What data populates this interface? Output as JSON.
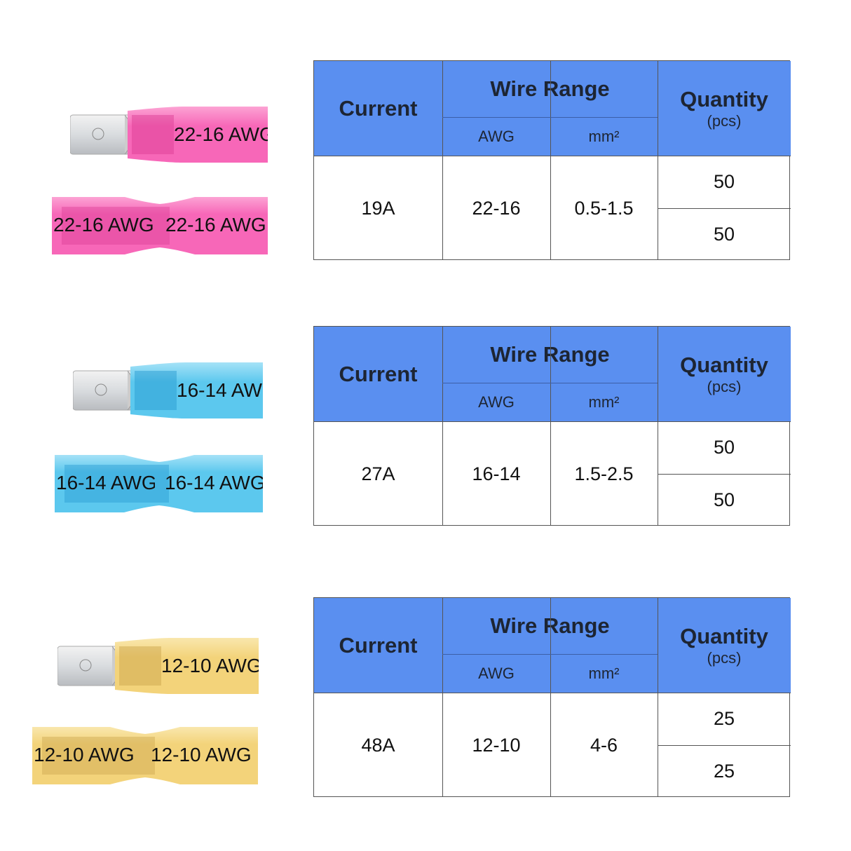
{
  "header": {
    "current": "Current",
    "wire_range": "Wire Range",
    "awg": "AWG",
    "mm2": "mm²",
    "quantity": "Quantity",
    "quantity_unit": "(pcs)"
  },
  "colors": {
    "header_bg": "#5a8ff0",
    "pink": "#f767b8",
    "blue": "#5cc8ee",
    "yellow": "#f3d37a"
  },
  "sets": [
    {
      "color": "pink",
      "connector_label": "22-16 AWG",
      "current": "19A",
      "awg": "22-16",
      "mm2": "0.5-1.5",
      "qty": [
        "50",
        "50"
      ]
    },
    {
      "color": "blue",
      "connector_label": "16-14 AWG",
      "current": "27A",
      "awg": "16-14",
      "mm2": "1.5-2.5",
      "qty": [
        "50",
        "50"
      ]
    },
    {
      "color": "yellow",
      "connector_label": "12-10 AWG",
      "current": "48A",
      "awg": "12-10",
      "mm2": "4-6",
      "qty": [
        "25",
        "25"
      ]
    }
  ]
}
